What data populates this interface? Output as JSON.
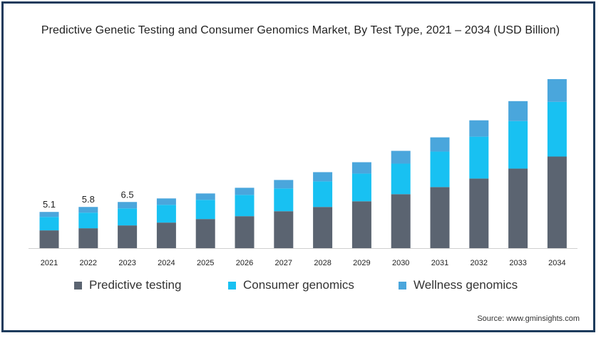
{
  "title": "Predictive Genetic Testing and Consumer Genomics Market, By Test Type, 2021 – 2034 (USD Billion)",
  "source": "Source: www.gminsights.com",
  "colors": {
    "predictive": "#5b6471",
    "consumer": "#18c1f2",
    "wellness": "#4aa6dc",
    "border": "#1d3b5c"
  },
  "chart_data": {
    "type": "bar",
    "stacked": true,
    "categories": [
      "2021",
      "2022",
      "2023",
      "2024",
      "2025",
      "2026",
      "2027",
      "2028",
      "2029",
      "2030",
      "2031",
      "2032",
      "2033",
      "2034"
    ],
    "series": [
      {
        "name": "Predictive testing",
        "values": [
          2.5,
          2.8,
          3.2,
          3.6,
          4.1,
          4.5,
          5.2,
          5.8,
          6.6,
          7.6,
          8.6,
          9.8,
          11.2,
          12.9
        ]
      },
      {
        "name": "Consumer genomics",
        "values": [
          1.9,
          2.2,
          2.4,
          2.5,
          2.7,
          3.0,
          3.2,
          3.6,
          3.9,
          4.3,
          5.0,
          5.9,
          6.7,
          7.7
        ]
      },
      {
        "name": "Wellness genomics",
        "values": [
          0.7,
          0.8,
          0.9,
          0.9,
          0.9,
          1.0,
          1.2,
          1.3,
          1.6,
          1.8,
          2.0,
          2.3,
          2.8,
          3.2
        ]
      }
    ],
    "data_labels": [
      "5.1",
      "5.8",
      "6.5"
    ],
    "ylim": [
      0,
      25
    ],
    "grid": false,
    "legend": "bottom"
  }
}
